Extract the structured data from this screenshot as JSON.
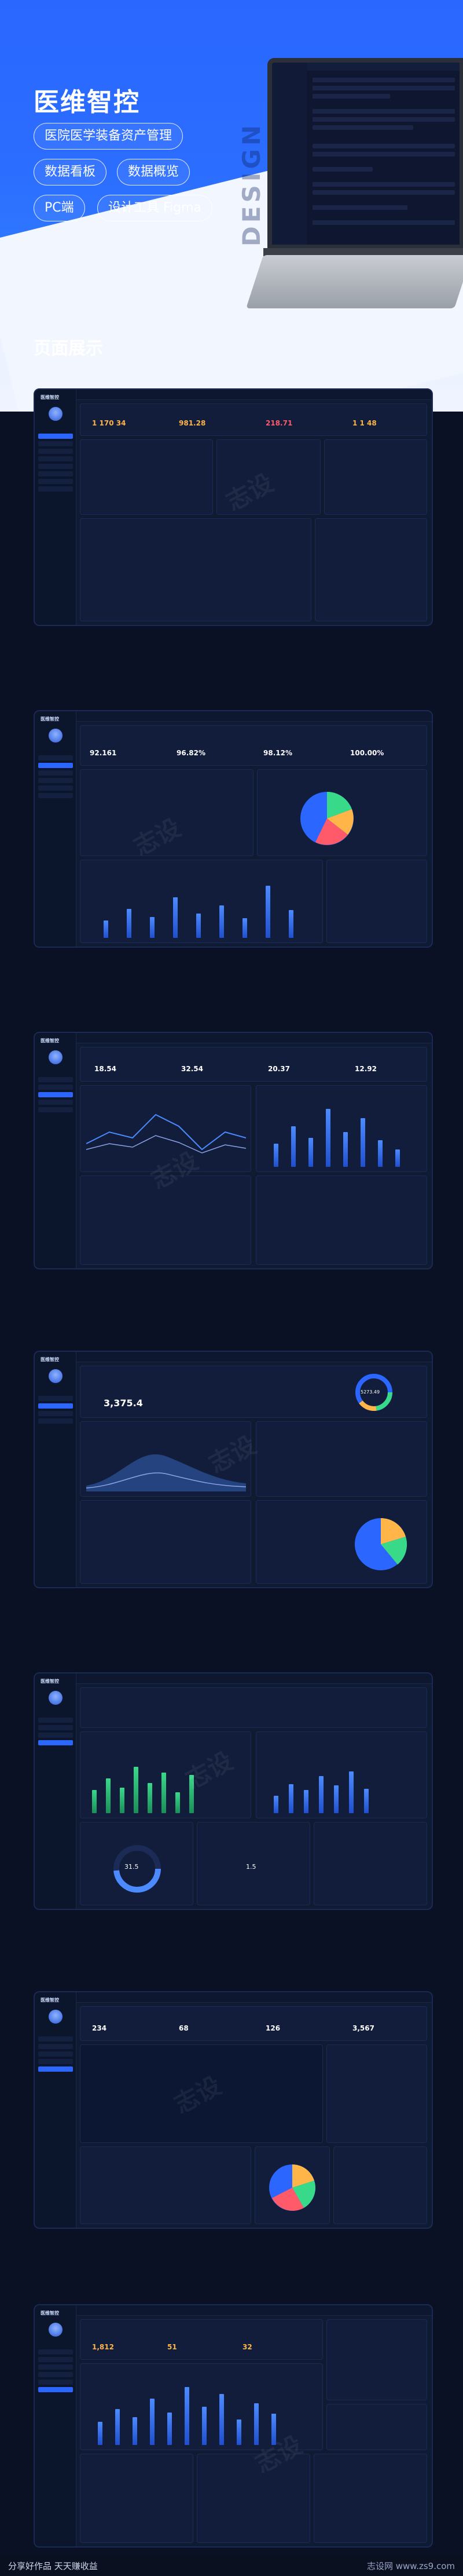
{
  "hero": {
    "title": "医维智控",
    "badges": [
      "医院医学装备资产管理",
      "数据看板",
      "数据概览",
      "PC端",
      "设计工具 Figma"
    ],
    "design_word": "DESIGN",
    "section_title": "页面展示"
  },
  "screens": [
    {
      "id": "s1",
      "kpis": [
        "1 170 34",
        "981.28",
        "218.71",
        "1 1 48"
      ]
    },
    {
      "id": "s2",
      "kpis": [
        "92.161",
        "96.82%",
        "98.12%",
        "100.00%"
      ]
    },
    {
      "id": "s3",
      "kpis": [
        "18.54",
        "32.54",
        "20.37",
        "12.92"
      ]
    },
    {
      "id": "s4",
      "kpis": [
        "3,375.4",
        "5273.49"
      ]
    },
    {
      "id": "s5",
      "kpis": [
        "31.5",
        "1.5"
      ]
    },
    {
      "id": "s6",
      "kpis": [
        "234",
        "68",
        "126",
        "3,567"
      ]
    },
    {
      "id": "s7",
      "kpis": [
        "1,812",
        "51",
        "32"
      ]
    }
  ],
  "app": {
    "logo": "医维智控"
  },
  "watermark": "志设",
  "footer": {
    "left": "分享好作品 天天赚收益",
    "right": "志设网 www.zs9.com"
  }
}
